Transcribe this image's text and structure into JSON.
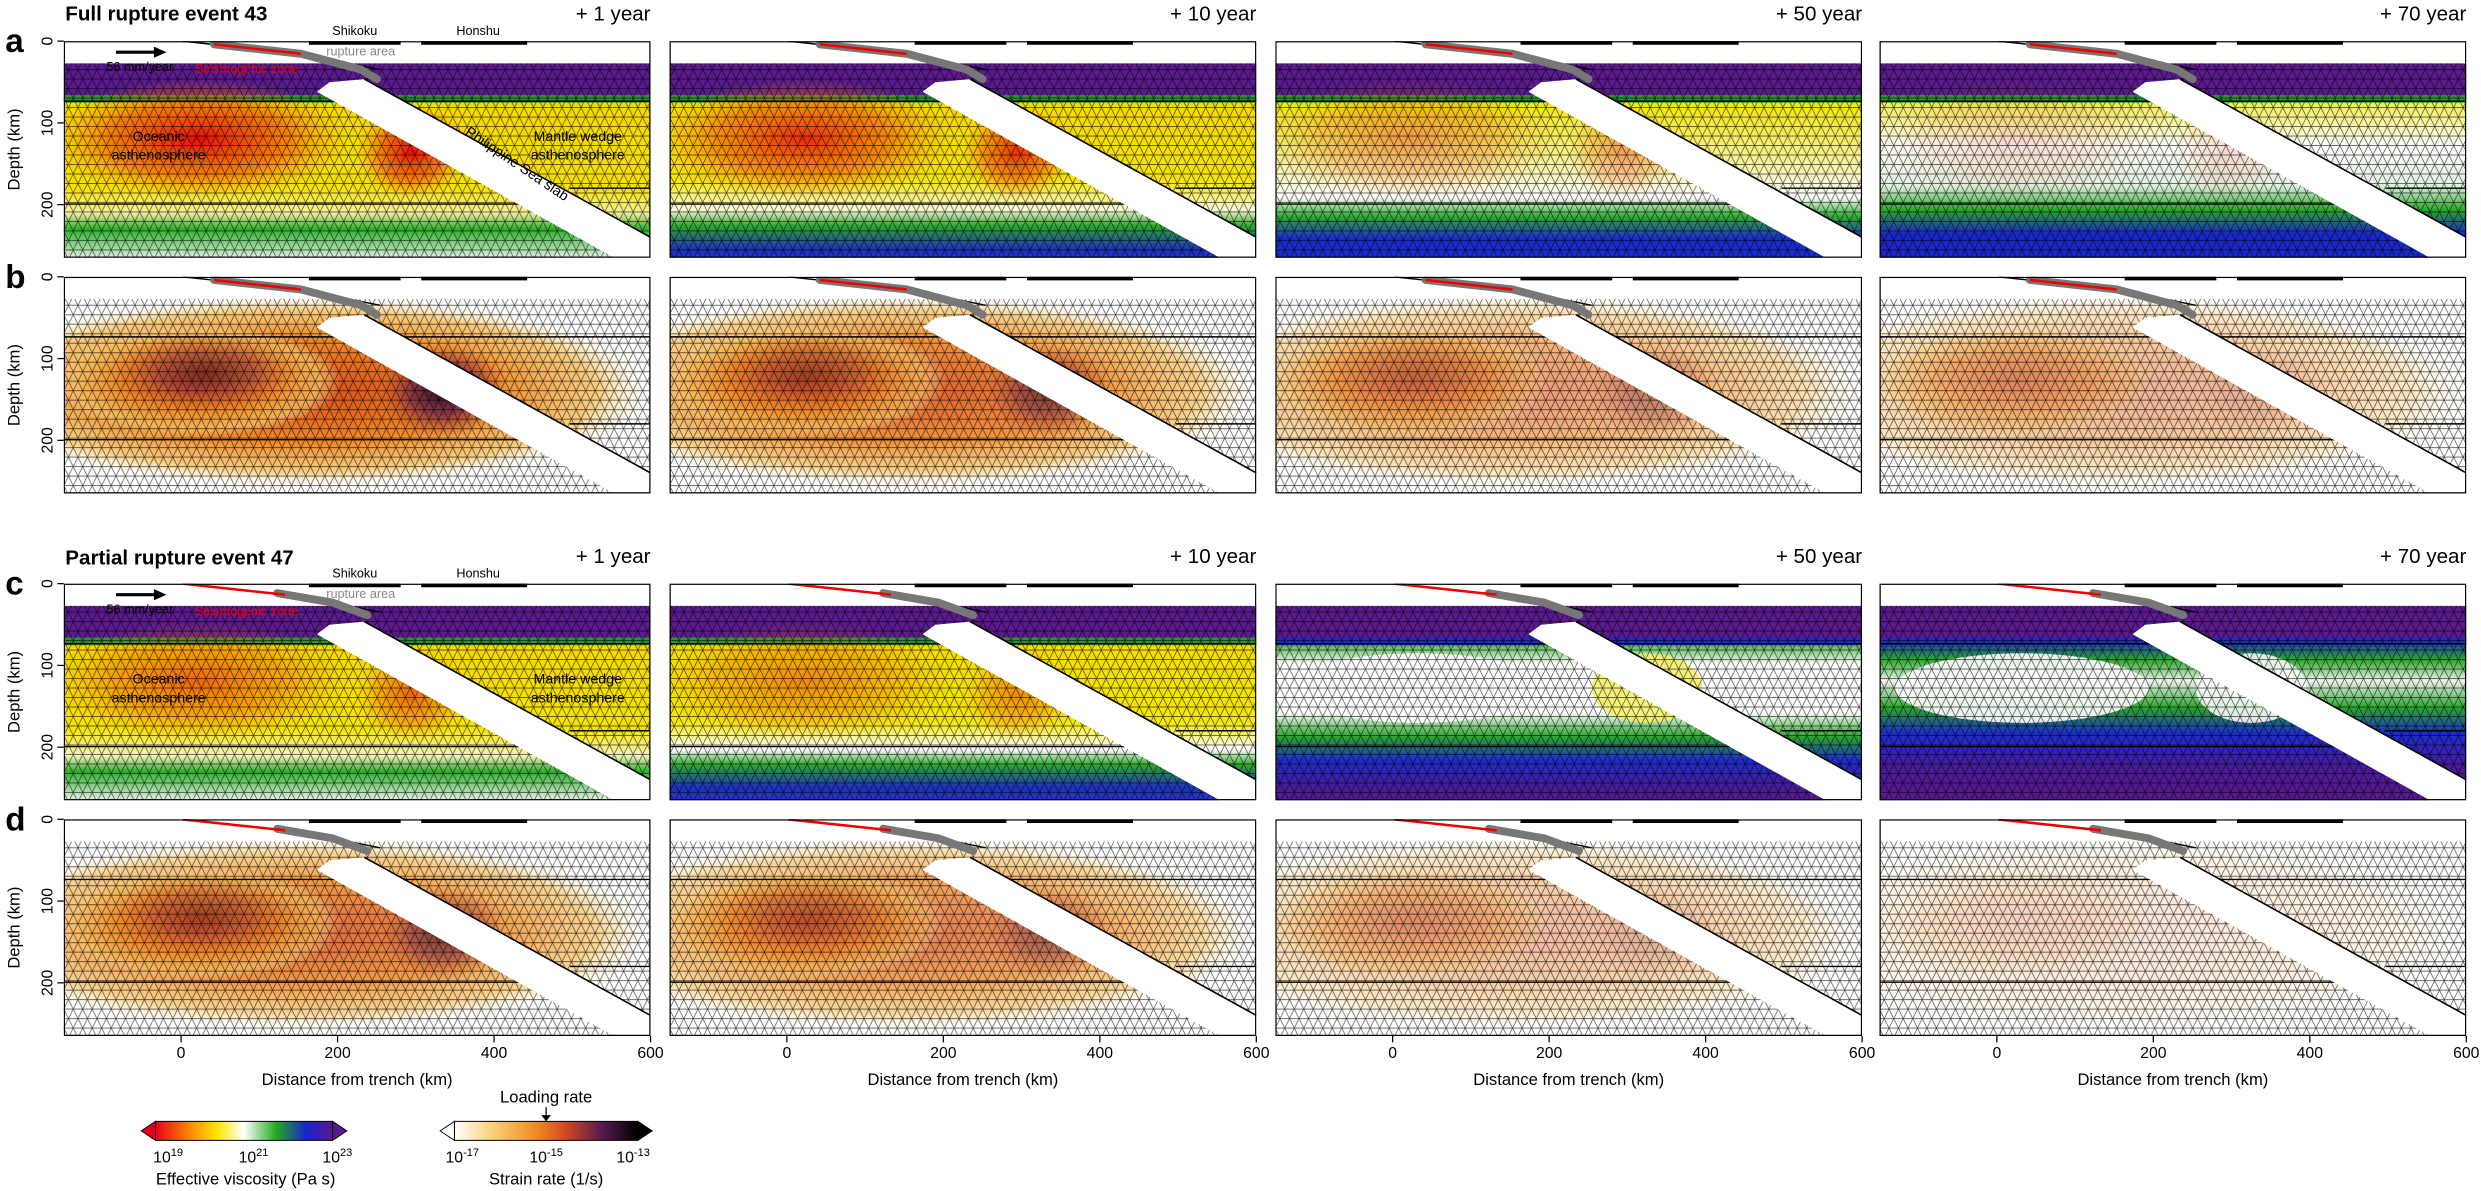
{
  "events": [
    {
      "title": "Full rupture event 43"
    },
    {
      "title": "Partial rupture event 47"
    }
  ],
  "rows": [
    {
      "letter": "a"
    },
    {
      "letter": "b"
    },
    {
      "letter": "c"
    },
    {
      "letter": "d"
    }
  ],
  "times": [
    "+ 1 year",
    "+ 10 year",
    "+ 50 year",
    "+ 70 year"
  ],
  "y_axis": {
    "label": "Depth (km)",
    "lim": [
      0,
      265
    ],
    "ticks": [
      0,
      100,
      200
    ]
  },
  "x_axis": {
    "label": "Distance from trench (km)",
    "lim": [
      -150,
      600
    ],
    "ticks": [
      0,
      200,
      400,
      600
    ]
  },
  "annotations": {
    "velocity": "56 mm/year",
    "seismogenic": "Seismogenic zone",
    "rupture": "rupture area",
    "shikoku": "Shikoku",
    "honshu": "Honshu",
    "oceanic": [
      "Oceanic",
      "asthenosphere"
    ],
    "wedge": [
      "Mantle wedge",
      "asthenosphere"
    ],
    "slab": "Philippine Sea slab"
  },
  "colorbars": [
    {
      "title": "Effective viscosity (Pa s)",
      "ticks": [
        {
          "base": "10",
          "exp": "19"
        },
        {
          "base": "10",
          "exp": "21"
        },
        {
          "base": "10",
          "exp": "23"
        }
      ]
    },
    {
      "title": "Strain rate (1/s)",
      "marker": "Loading rate",
      "ticks": [
        {
          "base": "10",
          "exp": "-17"
        },
        {
          "base": "10",
          "exp": "-15"
        },
        {
          "base": "10",
          "exp": "-13"
        }
      ]
    }
  ]
}
